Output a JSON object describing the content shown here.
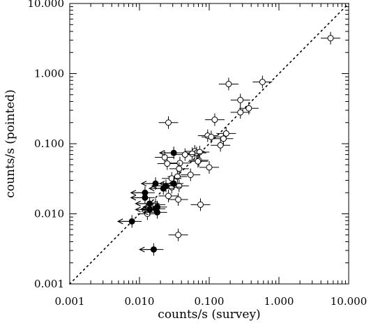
{
  "chart_data": {
    "type": "scatter",
    "title": "",
    "xlabel": "counts/s (survey)",
    "ylabel": "counts/s (pointed)",
    "xscale": "log",
    "yscale": "log",
    "xlim": [
      0.001,
      10.0
    ],
    "ylim": [
      0.001,
      10.0
    ],
    "xticks": [
      0.001,
      0.01,
      0.1,
      1.0,
      10.0
    ],
    "yticks": [
      0.001,
      0.01,
      0.1,
      1.0,
      10.0
    ],
    "xtick_labels": [
      "0.001",
      "0.010",
      "0.100",
      "1.000",
      "10.000"
    ],
    "ytick_labels": [
      "0.001",
      "0.010",
      "0.100",
      "1.000",
      "10.000"
    ],
    "grid": false,
    "legend": "none",
    "reference_line": {
      "style": "dotted",
      "x": [
        0.001,
        10.0
      ],
      "y": [
        0.001,
        10.0
      ]
    },
    "colors": {
      "open_marker": "#000000",
      "filled_marker": "#000000",
      "line": "#000000"
    },
    "series": [
      {
        "marker": "open-circle",
        "points": [
          {
            "x": 5.5,
            "y": 3.2
          },
          {
            "x": 0.58,
            "y": 0.76
          },
          {
            "x": 0.19,
            "y": 0.71
          },
          {
            "x": 0.28,
            "y": 0.42
          },
          {
            "x": 0.37,
            "y": 0.32
          },
          {
            "x": 0.28,
            "y": 0.28
          },
          {
            "x": 0.12,
            "y": 0.22
          },
          {
            "x": 0.175,
            "y": 0.14
          },
          {
            "x": 0.095,
            "y": 0.13
          },
          {
            "x": 0.107,
            "y": 0.125
          },
          {
            "x": 0.16,
            "y": 0.118
          },
          {
            "x": 0.145,
            "y": 0.095
          },
          {
            "x": 0.026,
            "y": 0.2
          },
          {
            "x": 0.062,
            "y": 0.078
          },
          {
            "x": 0.066,
            "y": 0.074
          },
          {
            "x": 0.073,
            "y": 0.076
          },
          {
            "x": 0.057,
            "y": 0.072
          },
          {
            "x": 0.045,
            "y": 0.07
          },
          {
            "x": 0.023,
            "y": 0.064
          },
          {
            "x": 0.071,
            "y": 0.058
          },
          {
            "x": 0.069,
            "y": 0.056
          },
          {
            "x": 0.038,
            "y": 0.053
          },
          {
            "x": 0.025,
            "y": 0.052
          },
          {
            "x": 0.1,
            "y": 0.046
          },
          {
            "x": 0.037,
            "y": 0.044
          },
          {
            "x": 0.054,
            "y": 0.036
          },
          {
            "x": 0.035,
            "y": 0.034
          },
          {
            "x": 0.029,
            "y": 0.032
          },
          {
            "x": 0.037,
            "y": 0.025
          },
          {
            "x": 0.029,
            "y": 0.024
          },
          {
            "x": 0.026,
            "y": 0.018
          },
          {
            "x": 0.036,
            "y": 0.016
          },
          {
            "x": 0.075,
            "y": 0.0135
          },
          {
            "x": 0.017,
            "y": 0.0135
          },
          {
            "x": 0.013,
            "y": 0.01
          },
          {
            "x": 0.036,
            "y": 0.005
          }
        ]
      },
      {
        "marker": "filled-circle",
        "upper_limit_arrows": true,
        "points": [
          {
            "x": 0.031,
            "y": 0.074
          },
          {
            "x": 0.031,
            "y": 0.027
          },
          {
            "x": 0.017,
            "y": 0.027
          },
          {
            "x": 0.024,
            "y": 0.025
          },
          {
            "x": 0.022,
            "y": 0.023
          },
          {
            "x": 0.012,
            "y": 0.02
          },
          {
            "x": 0.012,
            "y": 0.017
          },
          {
            "x": 0.014,
            "y": 0.014
          },
          {
            "x": 0.018,
            "y": 0.0125
          },
          {
            "x": 0.014,
            "y": 0.0115
          },
          {
            "x": 0.017,
            "y": 0.0118
          },
          {
            "x": 0.018,
            "y": 0.0105
          },
          {
            "x": 0.0078,
            "y": 0.0078
          },
          {
            "x": 0.016,
            "y": 0.0031
          }
        ]
      }
    ]
  }
}
